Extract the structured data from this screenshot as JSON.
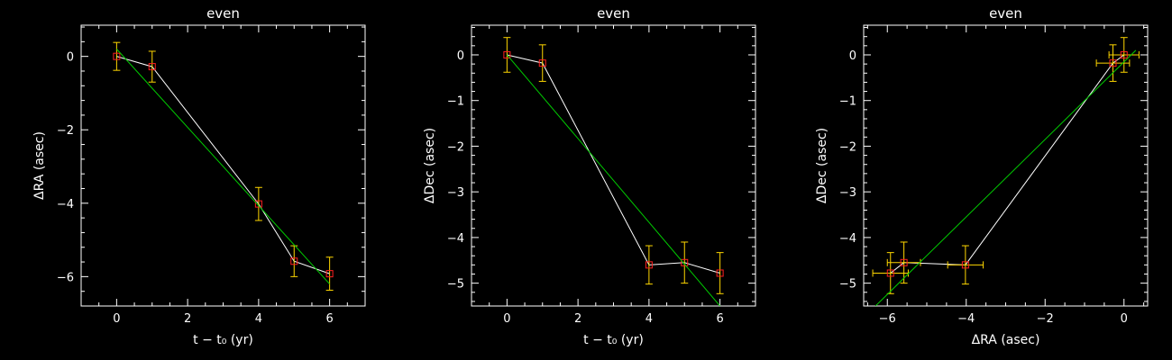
{
  "chart_data": [
    {
      "type": "scatter",
      "title": "even",
      "xlabel": "t − t₀ (yr)",
      "ylabel": "ΔRA (asec)",
      "xlim": [
        -1,
        7
      ],
      "ylim": [
        -6.8,
        0.85
      ],
      "xticks": [
        0,
        2,
        4,
        6
      ],
      "yticks": [
        0,
        -2,
        -4,
        -6
      ],
      "series": [
        {
          "role": "data",
          "color": "#ffffff",
          "marker_color": "#ff2020",
          "x": [
            0,
            1,
            4,
            5,
            6
          ],
          "y": [
            0.0,
            -0.28,
            -4.02,
            -5.58,
            -5.92
          ],
          "yerr": [
            0.38,
            0.42,
            0.45,
            0.42,
            0.45
          ]
        },
        {
          "role": "fit",
          "color": "#00cc00",
          "x": [
            0,
            6
          ],
          "y": [
            0.2,
            -6.2
          ]
        }
      ]
    },
    {
      "type": "scatter",
      "title": "even",
      "xlabel": "t − t₀ (yr)",
      "ylabel": "ΔDec (asec)",
      "xlim": [
        -1,
        7
      ],
      "ylim": [
        -5.5,
        0.65
      ],
      "xticks": [
        0,
        2,
        4,
        6
      ],
      "yticks": [
        0,
        -1,
        -2,
        -3,
        -4,
        -5
      ],
      "series": [
        {
          "role": "data",
          "color": "#ffffff",
          "marker_color": "#ff2020",
          "x": [
            0,
            1,
            4,
            5,
            6
          ],
          "y": [
            0.0,
            -0.18,
            -4.6,
            -4.55,
            -4.78
          ],
          "yerr": [
            0.38,
            0.4,
            0.42,
            0.45,
            0.45
          ]
        },
        {
          "role": "fit",
          "color": "#00cc00",
          "x": [
            0,
            6
          ],
          "y": [
            0.0,
            -5.5
          ]
        }
      ]
    },
    {
      "type": "scatter",
      "title": "even",
      "xlabel": "ΔRA (asec)",
      "ylabel": "ΔDec (asec)",
      "xlim": [
        -6.6,
        0.6
      ],
      "ylim": [
        -5.5,
        0.65
      ],
      "xticks": [
        -6,
        -4,
        -2,
        0
      ],
      "yticks": [
        0,
        -1,
        -2,
        -3,
        -4,
        -5
      ],
      "series": [
        {
          "role": "data",
          "color": "#ffffff",
          "marker_color": "#ff2020",
          "x": [
            0.0,
            -0.28,
            -4.02,
            -5.58,
            -5.92
          ],
          "y": [
            0.0,
            -0.18,
            -4.6,
            -4.55,
            -4.78
          ],
          "xerr": [
            0.38,
            0.42,
            0.45,
            0.42,
            0.45
          ],
          "yerr": [
            0.38,
            0.4,
            0.42,
            0.45,
            0.45
          ]
        },
        {
          "role": "fit",
          "color": "#00cc00",
          "x": [
            -6.3,
            0.3
          ],
          "y": [
            -5.5,
            0.1
          ]
        }
      ]
    }
  ],
  "style": {
    "background": "#000000",
    "axis_color": "#ffffff",
    "errorbar_color": "#ffd700"
  }
}
